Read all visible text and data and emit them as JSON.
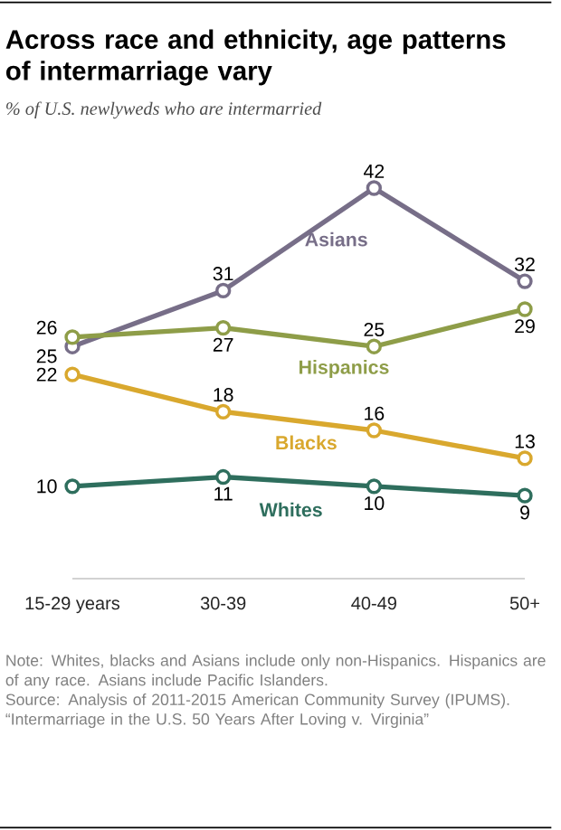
{
  "chart_data": {
    "type": "line",
    "title": "Across race and ethnicity, age patterns of intermarriage vary",
    "subtitle": "% of U.S. newlyweds who are intermarried",
    "categories": [
      "15-29 years",
      "30-39",
      "40-49",
      "50+"
    ],
    "series": [
      {
        "name": "Asians",
        "color": "#776e88",
        "values": [
          25,
          31,
          42,
          32
        ]
      },
      {
        "name": "Hispanics",
        "color": "#8e9d48",
        "values": [
          26,
          27,
          25,
          29
        ]
      },
      {
        "name": "Blacks",
        "color": "#d9a82e",
        "values": [
          22,
          18,
          16,
          13
        ]
      },
      {
        "name": "Whites",
        "color": "#2e6e5d",
        "values": [
          10,
          11,
          10,
          9
        ]
      }
    ],
    "data_labels": true,
    "marker": "circle",
    "line_style": "solid",
    "annotations": [
      "Note: Whites, blacks and Asians include only non-Hispanics. Hispanics are of any race. Asians include Pacific Islanders.",
      "Source: Analysis of 2011-2015 American Community Survey (IPUMS).",
      "“Intermarriage in the U.S. 50 Years After Loving v. Virginia”"
    ]
  }
}
